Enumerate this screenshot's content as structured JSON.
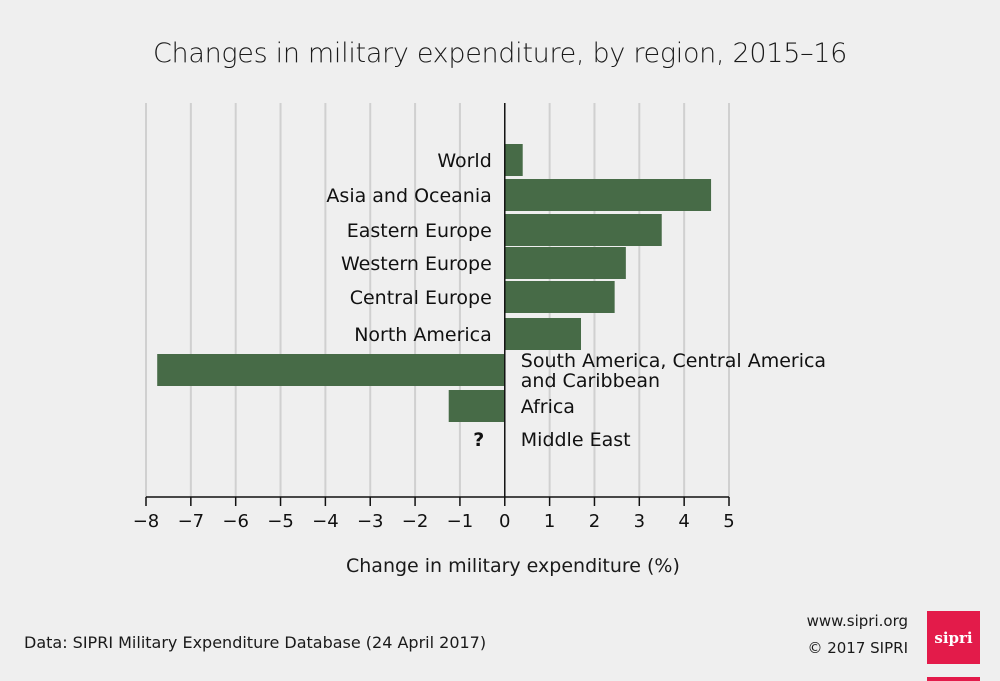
{
  "chart_data": {
    "type": "bar",
    "orientation": "horizontal",
    "title": "Changes in military expenditure, by region, 2015–16",
    "xlabel": "Change in military expenditure (%)",
    "ylabel": "",
    "xlim": [
      -8,
      5
    ],
    "xticks": [
      "−8",
      "−7",
      "−6",
      "−5",
      "−4",
      "−3",
      "−2",
      "−1",
      "0",
      "1",
      "2",
      "3",
      "4",
      "5"
    ],
    "grid": true,
    "color": "#476b47",
    "categories": [
      "World",
      "Asia and Oceania",
      "Eastern Europe",
      "Western Europe",
      "Central Europe",
      "North America",
      "South America, Central America and Caribbean",
      "Africa",
      "Middle East"
    ],
    "label_lines": [
      [
        "World"
      ],
      [
        "Asia and Oceania"
      ],
      [
        "Eastern Europe"
      ],
      [
        "Western Europe"
      ],
      [
        "Central Europe"
      ],
      [
        "North America"
      ],
      [
        "South America, Central America",
        "and Caribbean"
      ],
      [
        "Africa"
      ],
      [
        "Middle East"
      ]
    ],
    "values": [
      0.4,
      4.6,
      3.5,
      2.7,
      2.45,
      1.7,
      -7.75,
      -1.25,
      null
    ],
    "missing_marker": "?"
  },
  "footer": {
    "source": "Data: SIPRI Military Expenditure Database (24 April 2017)",
    "url": "www.sipri.org",
    "copyright": "© 2017 SIPRI",
    "logo_text": "sipri",
    "brand_color": "#e31b4a"
  }
}
